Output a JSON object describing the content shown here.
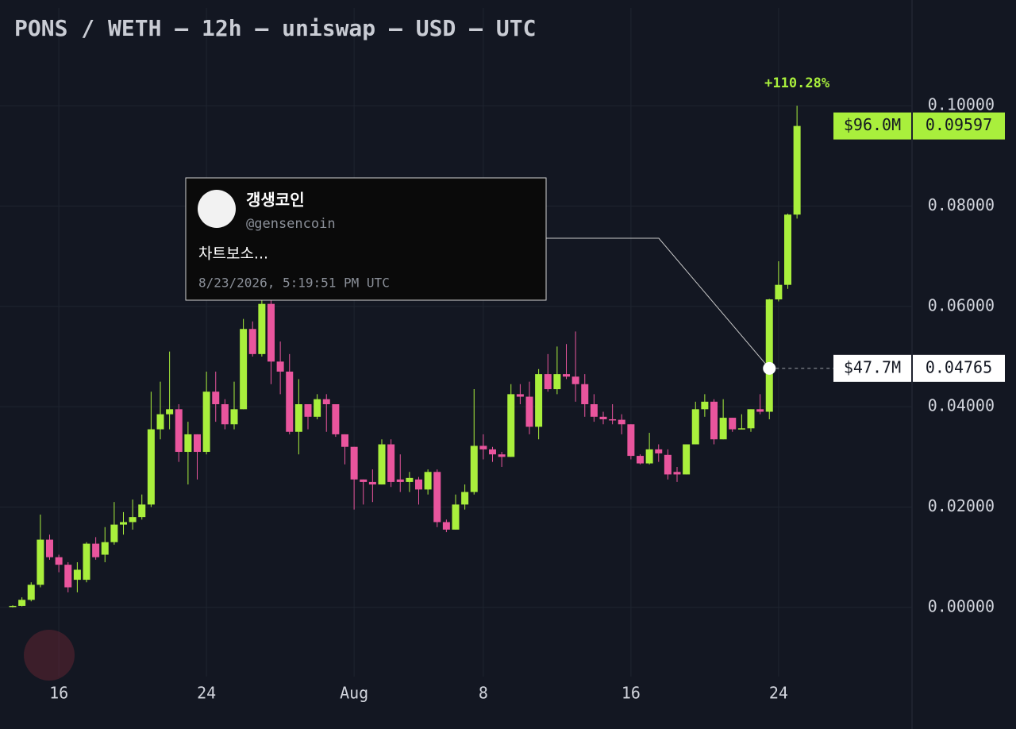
{
  "chart_data": {
    "type": "candlestick",
    "title": "PONS / WETH — 12h — uniswap — USD — UTC",
    "up_color": "#a9ef3c",
    "down_color": "#e9559d",
    "open": [
      0.0001,
      0.0003,
      0.0015,
      0.0045,
      0.0135,
      0.01,
      0.0085,
      0.0055,
      0.0055,
      0.0127,
      0.0105,
      0.013,
      0.0165,
      0.017,
      0.018,
      0.0205,
      0.0355,
      0.0385,
      0.0395,
      0.031,
      0.0345,
      0.031,
      0.043,
      0.0405,
      0.0365,
      0.0395,
      0.0555,
      0.0505,
      0.0605,
      0.049,
      0.047,
      0.035,
      0.0405,
      0.038,
      0.0415,
      0.0405,
      0.0345,
      0.032,
      0.0255,
      0.025,
      0.0245,
      0.0325,
      0.0255,
      0.025,
      0.0255,
      0.0235,
      0.027,
      0.017,
      0.0155,
      0.0205,
      0.023,
      0.0322,
      0.0315,
      0.0305,
      0.03,
      0.0425,
      0.042,
      0.036,
      0.0465,
      0.0435,
      0.0465,
      0.046,
      0.0445,
      0.0405,
      0.038,
      0.0375,
      0.0374,
      0.0365,
      0.0302,
      0.0287,
      0.0315,
      0.0304,
      0.027,
      0.0265,
      0.0325,
      0.0395,
      0.041,
      0.0335,
      0.0378,
      0.0355,
      0.0357,
      0.0395,
      0.039,
      0.0614,
      0.0643,
      0.0783
    ],
    "high": [
      0.0004,
      0.002,
      0.005,
      0.0185,
      0.0145,
      0.0105,
      0.009,
      0.009,
      0.013,
      0.014,
      0.016,
      0.021,
      0.019,
      0.0215,
      0.0225,
      0.043,
      0.045,
      0.051,
      0.0405,
      0.037,
      0.0345,
      0.047,
      0.047,
      0.0415,
      0.045,
      0.0575,
      0.057,
      0.0615,
      0.063,
      0.053,
      0.0505,
      0.0455,
      0.0405,
      0.0425,
      0.0425,
      0.0405,
      0.0345,
      0.032,
      0.0255,
      0.0275,
      0.0335,
      0.0335,
      0.0305,
      0.027,
      0.026,
      0.0275,
      0.0275,
      0.0175,
      0.0225,
      0.0245,
      0.0435,
      0.0345,
      0.032,
      0.031,
      0.0445,
      0.0445,
      0.045,
      0.0475,
      0.0505,
      0.052,
      0.0525,
      0.055,
      0.0465,
      0.0425,
      0.039,
      0.0405,
      0.0385,
      0.0365,
      0.0305,
      0.0348,
      0.0325,
      0.0315,
      0.028,
      0.0325,
      0.041,
      0.0425,
      0.0415,
      0.0415,
      0.0378,
      0.0385,
      0.0395,
      0.0425,
      0.0615,
      0.069,
      0.0785,
      0.1
    ],
    "low": [
      0,
      0.0002,
      0.0012,
      0.004,
      0.0095,
      0.007,
      0.003,
      0.003,
      0.005,
      0.0095,
      0.009,
      0.0125,
      0.0145,
      0.0155,
      0.0175,
      0.02,
      0.0335,
      0.0355,
      0.029,
      0.0245,
      0.0255,
      0.0305,
      0.037,
      0.0355,
      0.0355,
      0.0395,
      0.05,
      0.05,
      0.0445,
      0.0425,
      0.0345,
      0.0305,
      0.0355,
      0.0375,
      0.035,
      0.034,
      0.0285,
      0.0195,
      0.0205,
      0.021,
      0.0245,
      0.024,
      0.023,
      0.023,
      0.0205,
      0.0225,
      0.016,
      0.015,
      0.0155,
      0.0195,
      0.0225,
      0.0295,
      0.029,
      0.028,
      0.03,
      0.0405,
      0.0345,
      0.0335,
      0.043,
      0.0425,
      0.0455,
      0.041,
      0.038,
      0.037,
      0.0365,
      0.0365,
      0.0345,
      0.0295,
      0.0285,
      0.0285,
      0.029,
      0.0255,
      0.025,
      0.0265,
      0.0325,
      0.038,
      0.0325,
      0.0335,
      0.035,
      0.0355,
      0.035,
      0.0385,
      0.0375,
      0.061,
      0.0635,
      0.0775
    ],
    "close": [
      0.0003,
      0.0015,
      0.0045,
      0.0135,
      0.01,
      0.0085,
      0.004,
      0.0075,
      0.0127,
      0.01,
      0.013,
      0.0165,
      0.017,
      0.018,
      0.0205,
      0.0355,
      0.0385,
      0.0395,
      0.031,
      0.0345,
      0.031,
      0.043,
      0.0405,
      0.0365,
      0.0395,
      0.0555,
      0.0505,
      0.0605,
      0.049,
      0.047,
      0.035,
      0.0405,
      0.038,
      0.0415,
      0.0405,
      0.0345,
      0.032,
      0.0255,
      0.025,
      0.0245,
      0.0325,
      0.025,
      0.025,
      0.0258,
      0.0235,
      0.027,
      0.017,
      0.0155,
      0.0205,
      0.023,
      0.0322,
      0.0315,
      0.0305,
      0.03,
      0.0425,
      0.042,
      0.036,
      0.0465,
      0.0435,
      0.0465,
      0.046,
      0.0445,
      0.0405,
      0.038,
      0.0375,
      0.0374,
      0.0365,
      0.0302,
      0.0287,
      0.0315,
      0.0307,
      0.0265,
      0.0265,
      0.0325,
      0.0395,
      0.041,
      0.0335,
      0.0378,
      0.0355,
      0.0357,
      0.0395,
      0.039,
      0.0614,
      0.0643,
      0.0783,
      0.09597
    ],
    "ylim": [
      -0.0138,
      0.1195
    ],
    "yticks": [
      {
        "value": 0,
        "label": "0.00000"
      },
      {
        "value": 0.02,
        "label": "0.02000"
      },
      {
        "value": 0.04,
        "label": "0.04000"
      },
      {
        "value": 0.06,
        "label": "0.06000"
      },
      {
        "value": 0.08,
        "label": "0.08000"
      },
      {
        "value": 0.1,
        "label": "0.10000"
      }
    ],
    "xlim": [
      -0.5,
      97.5
    ],
    "xticks": [
      {
        "value": 5,
        "label": "16"
      },
      {
        "value": 21,
        "label": "24"
      },
      {
        "value": 37,
        "label": "Aug"
      },
      {
        "value": 51,
        "label": "8"
      },
      {
        "value": 67,
        "label": "16"
      },
      {
        "value": 83,
        "label": "24"
      }
    ],
    "grid": true,
    "change_label": "+110.28%",
    "last_price": {
      "value": 0.09597,
      "mcap_label": "$96.0M"
    },
    "tweet": {
      "candle": 82,
      "price": 0.04765,
      "mcap_label": "$47.7M",
      "name": "갱생코인",
      "handle": "@gensencoin",
      "text": "차트보소...",
      "time": "8/23/2026, 5:19:51 PM UTC"
    }
  }
}
